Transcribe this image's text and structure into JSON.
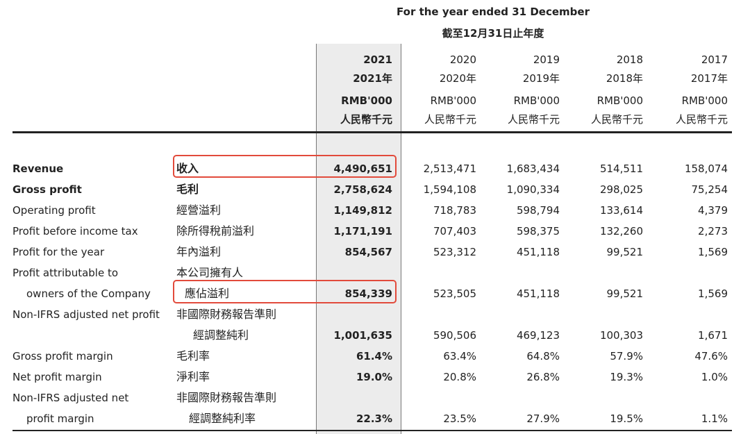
{
  "header": {
    "title_en": "For the year ended 31 December",
    "title_zh": "截至12月31日止年度"
  },
  "columns": [
    {
      "year": "2021",
      "year_zh": "2021年",
      "unit": "RMB'000",
      "unit_zh": "人民幣千元"
    },
    {
      "year": "2020",
      "year_zh": "2020年",
      "unit": "RMB'000",
      "unit_zh": "人民幣千元"
    },
    {
      "year": "2019",
      "year_zh": "2019年",
      "unit": "RMB'000",
      "unit_zh": "人民幣千元"
    },
    {
      "year": "2018",
      "year_zh": "2018年",
      "unit": "RMB'000",
      "unit_zh": "人民幣千元"
    },
    {
      "year": "2017",
      "year_zh": "2017年",
      "unit": "RMB'000",
      "unit_zh": "人民幣千元"
    }
  ],
  "rows": [
    {
      "en": "Revenue",
      "zh": "收入",
      "values": [
        "4,490,651",
        "2,513,471",
        "1,683,434",
        "514,511",
        "158,074"
      ]
    },
    {
      "en": "Gross profit",
      "zh": "毛利",
      "values": [
        "2,758,624",
        "1,594,108",
        "1,090,334",
        "298,025",
        "75,254"
      ]
    },
    {
      "en": "Operating profit",
      "zh": "經營溢利",
      "values": [
        "1,149,812",
        "718,783",
        "598,794",
        "133,614",
        "4,379"
      ]
    },
    {
      "en": "Profit before income tax",
      "zh": "除所得稅前溢利",
      "values": [
        "1,171,191",
        "707,403",
        "598,375",
        "132,260",
        "2,273"
      ]
    },
    {
      "en": "Profit for the year",
      "zh": "年內溢利",
      "values": [
        "854,567",
        "523,312",
        "451,118",
        "99,521",
        "1,569"
      ]
    },
    {
      "en": "Profit attributable to",
      "zh": "本公司擁有人",
      "values": [
        "",
        "",
        "",
        "",
        ""
      ]
    },
    {
      "en": "owners of the Company",
      "zh": "應佔溢利",
      "values": [
        "854,339",
        "523,505",
        "451,118",
        "99,521",
        "1,569"
      ]
    },
    {
      "en": "Non-IFRS adjusted net profit",
      "zh": "非國際財務報告準則",
      "values": [
        "",
        "",
        "",
        "",
        ""
      ]
    },
    {
      "en": "",
      "zh": "經調整純利",
      "values": [
        "1,001,635",
        "590,506",
        "469,123",
        "100,303",
        "1,671"
      ]
    },
    {
      "en": "Gross profit margin",
      "zh": "毛利率",
      "values": [
        "61.4%",
        "63.4%",
        "64.8%",
        "57.9%",
        "47.6%"
      ]
    },
    {
      "en": "Net profit margin",
      "zh": "淨利率",
      "values": [
        "19.0%",
        "20.8%",
        "26.8%",
        "19.3%",
        "1.0%"
      ]
    },
    {
      "en": "Non-IFRS adjusted net",
      "zh": "非國際財務報告準則",
      "values": [
        "",
        "",
        "",
        "",
        ""
      ]
    },
    {
      "en": "profit margin",
      "zh": "經調整純利率",
      "values": [
        "22.3%",
        "23.5%",
        "27.9%",
        "19.5%",
        "1.1%"
      ]
    }
  ]
}
